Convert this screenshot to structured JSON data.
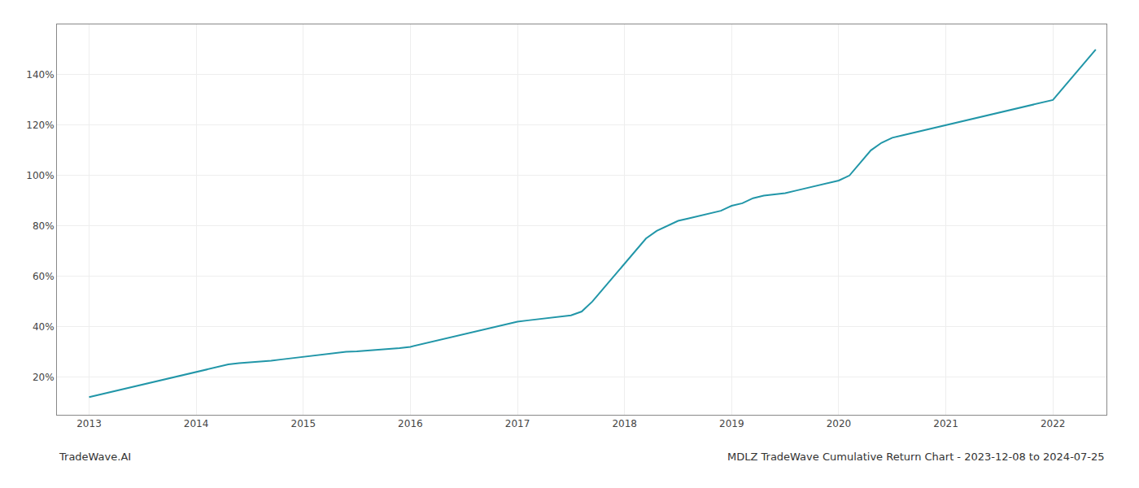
{
  "chart_data": {
    "type": "line",
    "title": "MDLZ TradeWave Cumulative Return Chart - 2023-12-08 to 2024-07-25",
    "annotations": [
      "TradeWave.AI"
    ],
    "x": [
      2013.0,
      2013.1,
      2013.2,
      2013.3,
      2013.4,
      2013.5,
      2013.6,
      2013.7,
      2013.8,
      2013.9,
      2014.0,
      2014.1,
      2014.2,
      2014.3,
      2014.4,
      2014.5,
      2014.6,
      2014.7,
      2014.8,
      2014.9,
      2015.0,
      2015.1,
      2015.2,
      2015.3,
      2015.4,
      2015.5,
      2015.6,
      2015.7,
      2015.8,
      2015.9,
      2016.0,
      2016.1,
      2016.2,
      2016.3,
      2016.4,
      2016.5,
      2016.6,
      2016.7,
      2016.8,
      2016.9,
      2017.0,
      2017.1,
      2017.2,
      2017.3,
      2017.4,
      2017.5,
      2017.6,
      2017.7,
      2017.8,
      2017.9,
      2018.0,
      2018.1,
      2018.2,
      2018.3,
      2018.4,
      2018.5,
      2018.6,
      2018.7,
      2018.8,
      2018.9,
      2019.0,
      2019.1,
      2019.2,
      2019.3,
      2019.4,
      2019.5,
      2019.6,
      2019.7,
      2019.8,
      2019.9,
      2020.0,
      2020.1,
      2020.2,
      2020.3,
      2020.4,
      2020.5,
      2020.6,
      2020.7,
      2020.8,
      2020.9,
      2021.0,
      2021.1,
      2021.2,
      2021.3,
      2021.4,
      2021.5,
      2021.6,
      2021.7,
      2021.8,
      2021.9,
      2022.0,
      2022.1,
      2022.2,
      2022.3,
      2022.4
    ],
    "values": [
      12,
      13,
      14,
      15,
      16,
      17,
      18,
      19,
      20,
      21,
      22,
      23,
      24,
      25,
      25.5,
      25.8,
      26,
      26.5,
      27,
      27.5,
      28,
      28.5,
      29,
      29.5,
      30,
      30.2,
      30.5,
      30.8,
      31,
      31.5,
      32,
      33,
      34,
      35,
      36,
      37,
      38,
      39,
      40,
      41,
      42,
      42.5,
      43,
      43.5,
      44,
      44.5,
      46,
      50,
      55,
      60,
      65,
      70,
      75,
      78,
      80,
      82,
      83,
      84,
      85,
      86,
      88,
      89,
      91,
      92,
      92.5,
      93,
      94,
      95,
      96,
      97,
      98,
      100,
      105,
      110,
      113,
      115,
      116,
      117,
      118,
      119,
      120,
      121,
      122,
      123,
      124,
      125,
      126,
      127,
      128,
      129,
      130,
      135,
      140,
      145,
      150
    ],
    "color": "#2196a8",
    "xlim": [
      2012.7,
      2022.5
    ],
    "xticks": [
      2013,
      2014,
      2015,
      2016,
      2017,
      2018,
      2019,
      2020,
      2021,
      2022
    ],
    "ylim": [
      5,
      160
    ],
    "yticks": [
      {
        "value": 20,
        "label": "20%"
      },
      {
        "value": 40,
        "label": "40%"
      },
      {
        "value": 60,
        "label": "60%"
      },
      {
        "value": 80,
        "label": "80%"
      },
      {
        "value": 100,
        "label": "100%"
      },
      {
        "value": 120,
        "label": "120%"
      },
      {
        "value": 140,
        "label": "140%"
      }
    ],
    "grid": true
  }
}
